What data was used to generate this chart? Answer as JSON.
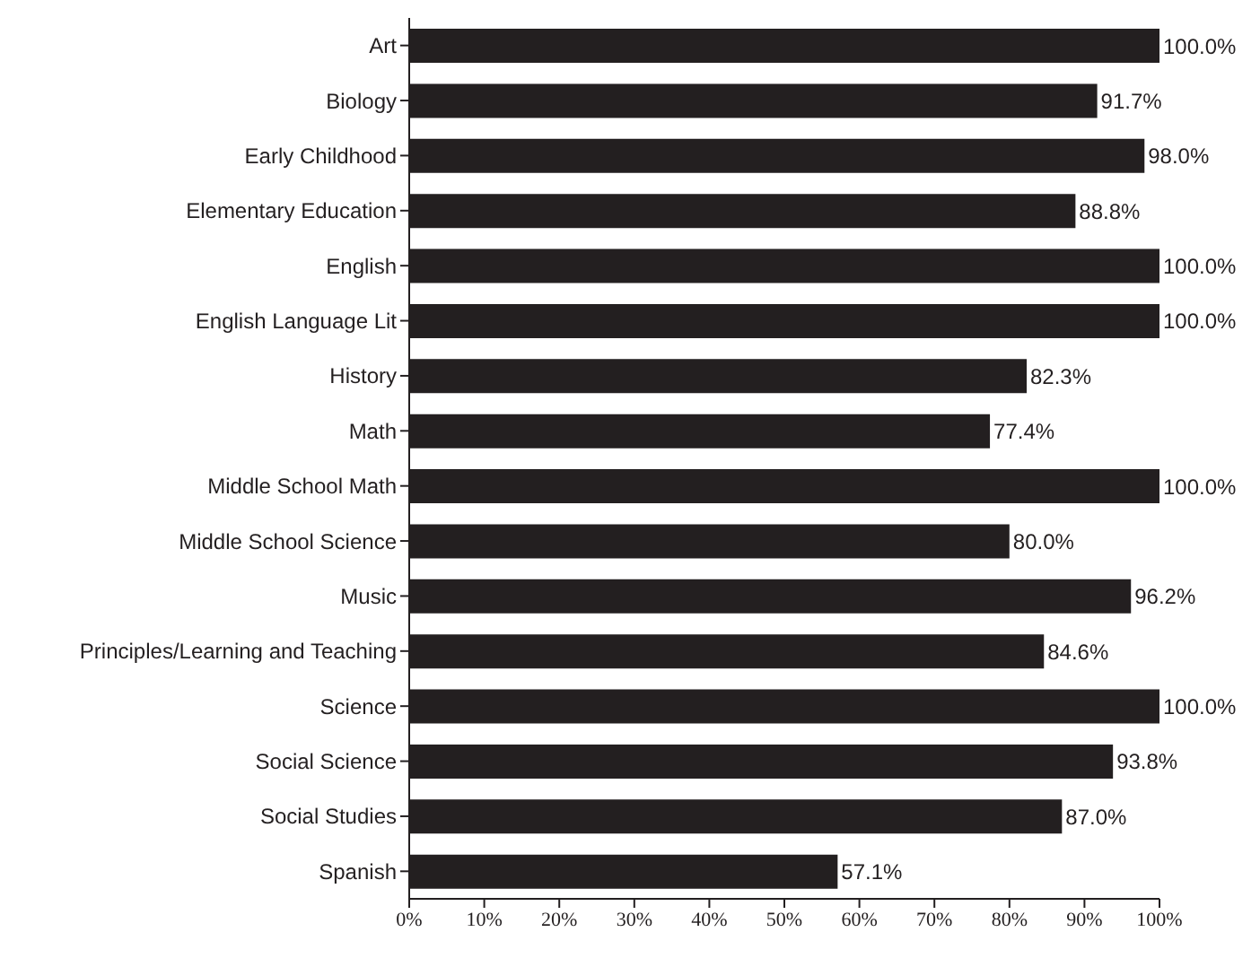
{
  "chart_data": {
    "type": "bar",
    "orientation": "horizontal",
    "categories": [
      "Art",
      "Biology",
      "Early Childhood",
      "Elementary Education",
      "English",
      "English Language Lit",
      "History",
      "Math",
      "Middle School Math",
      "Middle School Science",
      "Music",
      "Principles/Learning and Teaching",
      "Science",
      "Social Science",
      "Social Studies",
      "Spanish"
    ],
    "values": [
      100,
      91.7,
      98,
      88.8,
      100,
      100,
      82.3,
      77.4,
      100,
      80,
      96.2,
      84.6,
      100,
      93.8,
      87,
      57.1
    ],
    "value_labels": [
      "100.0%",
      "91.7%",
      "98.0%",
      "88.8%",
      "100.0%",
      "100.0%",
      "82.3%",
      "77.4%",
      "100.0%",
      "80.0%",
      "96.2%",
      "84.6%",
      "100.0%",
      "93.8%",
      "87.0%",
      "57.1%"
    ],
    "color": "#231f20",
    "xlim": [
      0,
      100
    ],
    "xticks": [
      {
        "value": 0,
        "label": "0%"
      },
      {
        "value": 10,
        "label": "10%"
      },
      {
        "value": 20,
        "label": "20%"
      },
      {
        "value": 30,
        "label": "30%"
      },
      {
        "value": 40,
        "label": "40%"
      },
      {
        "value": 50,
        "label": "50%"
      },
      {
        "value": 60,
        "label": "60%"
      },
      {
        "value": 70,
        "label": "70%"
      },
      {
        "value": 80,
        "label": "80%"
      },
      {
        "value": 90,
        "label": "90%"
      },
      {
        "value": 100,
        "label": "100%"
      }
    ],
    "grid": false,
    "legend": false
  }
}
